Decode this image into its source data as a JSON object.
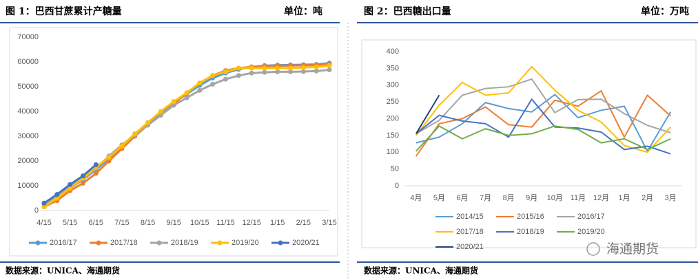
{
  "panels": [
    {
      "title": "图 1：巴西甘蔗累计产糖量",
      "unit": "单位：吨",
      "source": "数据来源：UNICA、海通期货"
    },
    {
      "title": "图 2：巴西糖出口量",
      "unit": "单位：万吨",
      "source": "数据来源：UNICA、海通期货"
    }
  ],
  "watermark": "海通期货",
  "chart_data": [
    {
      "type": "line",
      "markers": true,
      "categories": [
        "4/15",
        null,
        "5/15",
        null,
        "6/15",
        null,
        "7/15",
        null,
        "8/15",
        null,
        "9/15",
        null,
        "10/15",
        null,
        "11/15",
        null,
        "12/15",
        null,
        "1/15",
        null,
        "2/15",
        null,
        "3/15"
      ],
      "ylim": [
        0,
        70000
      ],
      "yticks": [
        0,
        10000,
        20000,
        30000,
        40000,
        50000,
        60000,
        70000
      ],
      "grid": false,
      "series": [
        {
          "name": "2016/17",
          "color": "#5b9bd5",
          "values": [
            2000,
            5000,
            9000,
            12500,
            16500,
            21000,
            26000,
            31000,
            35000,
            39500,
            43500,
            47000,
            50500,
            53500,
            55500,
            57000,
            58000,
            58500,
            58700,
            58800,
            58900,
            59000,
            59500
          ]
        },
        {
          "name": "2017/18",
          "color": "#ed7d31",
          "values": [
            1500,
            4000,
            8000,
            11000,
            15000,
            20000,
            25000,
            30000,
            34500,
            38500,
            43000,
            47500,
            51500,
            54500,
            56500,
            57500,
            58000,
            58300,
            58400,
            58500,
            58600,
            58800,
            59000
          ]
        },
        {
          "name": "2018/19",
          "color": "#a5a5a5",
          "values": [
            2000,
            5500,
            9500,
            13000,
            17000,
            22000,
            26500,
            30500,
            34500,
            38500,
            42500,
            45500,
            48500,
            51000,
            53000,
            54500,
            55500,
            55800,
            56000,
            56000,
            56100,
            56300,
            56800
          ]
        },
        {
          "name": "2019/20",
          "color": "#ffc000",
          "values": [
            1500,
            5000,
            9000,
            13000,
            17500,
            21500,
            26000,
            31000,
            35500,
            40000,
            44000,
            47500,
            51500,
            54500,
            56000,
            57500,
            57500,
            57500,
            57500,
            57500,
            57700,
            58000,
            58500
          ]
        },
        {
          "name": "2020/21",
          "color": "#4472c4",
          "values": [
            3000,
            6500,
            10500,
            14000,
            18500,
            null,
            null,
            null,
            null,
            null,
            null,
            null,
            null,
            null,
            null,
            null,
            null,
            null,
            null,
            null,
            null,
            null,
            null
          ]
        }
      ]
    },
    {
      "type": "line",
      "markers": false,
      "categories": [
        "4月",
        "5月",
        "6月",
        "7月",
        "8月",
        "9月",
        "10月",
        "11月",
        "12月",
        "1月",
        "2月",
        "3月"
      ],
      "ylim": [
        0,
        400
      ],
      "yticks": [
        0,
        50,
        100,
        150,
        200,
        250,
        300,
        350,
        400
      ],
      "grid": false,
      "series": [
        {
          "name": "2014/15",
          "color": "#5b9bd5",
          "values": [
            128,
            145,
            185,
            248,
            230,
            220,
            272,
            203,
            225,
            237,
            103,
            220
          ]
        },
        {
          "name": "2015/16",
          "color": "#ed7d31",
          "values": [
            88,
            185,
            200,
            235,
            182,
            175,
            255,
            237,
            283,
            145,
            270,
            208
          ]
        },
        {
          "name": "2016/17",
          "color": "#a5a5a5",
          "values": [
            155,
            195,
            270,
            290,
            295,
            318,
            218,
            257,
            258,
            215,
            180,
            158
          ]
        },
        {
          "name": "2017/18",
          "color": "#ffc000",
          "values": [
            150,
            240,
            308,
            270,
            277,
            355,
            285,
            225,
            190,
            120,
            100,
            175
          ]
        },
        {
          "name": "2018/19",
          "color": "#4472c4",
          "values": [
            155,
            210,
            193,
            185,
            145,
            258,
            175,
            172,
            160,
            108,
            118,
            95
          ]
        },
        {
          "name": "2019/20",
          "color": "#70ad47",
          "values": [
            103,
            178,
            140,
            170,
            150,
            155,
            178,
            168,
            128,
            140,
            108,
            140
          ]
        },
        {
          "name": "2020/21",
          "color": "#264478",
          "values": [
            155,
            270,
            null,
            null,
            null,
            null,
            null,
            null,
            null,
            null,
            null,
            null
          ]
        }
      ]
    }
  ]
}
